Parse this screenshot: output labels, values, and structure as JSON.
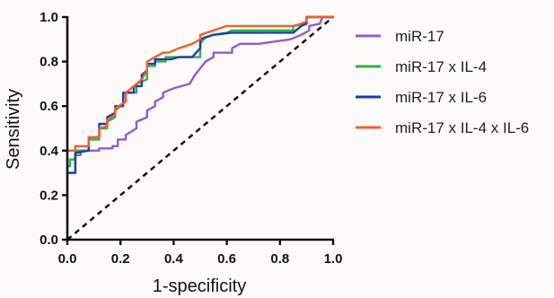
{
  "chart_data": {
    "type": "line",
    "title": "",
    "xlabel": "1-specificity",
    "ylabel": "Sensitivity",
    "xlim": [
      0,
      1
    ],
    "ylim": [
      0,
      1
    ],
    "x_ticks": [
      "0.0",
      "0.2",
      "0.4",
      "0.6",
      "0.8",
      "1.0"
    ],
    "y_ticks": [
      "0.0",
      "0.2",
      "0.4",
      "0.6",
      "0.8",
      "1.0"
    ],
    "grid": false,
    "legend_position": "right",
    "reference_line": {
      "style": "dashed",
      "color": "#111111",
      "from": [
        0,
        0
      ],
      "to": [
        1,
        1
      ]
    },
    "series": [
      {
        "name": "miR-17",
        "color": "#9b59c8",
        "points": [
          [
            0,
            0.29
          ],
          [
            0,
            0.3
          ],
          [
            0.03,
            0.3
          ],
          [
            0.03,
            0.38
          ],
          [
            0.05,
            0.38
          ],
          [
            0.05,
            0.4
          ],
          [
            0.12,
            0.4
          ],
          [
            0.12,
            0.41
          ],
          [
            0.17,
            0.41
          ],
          [
            0.17,
            0.42
          ],
          [
            0.19,
            0.42
          ],
          [
            0.19,
            0.45
          ],
          [
            0.22,
            0.45
          ],
          [
            0.22,
            0.47
          ],
          [
            0.26,
            0.5
          ],
          [
            0.26,
            0.53
          ],
          [
            0.3,
            0.55
          ],
          [
            0.3,
            0.58
          ],
          [
            0.33,
            0.6
          ],
          [
            0.33,
            0.62
          ],
          [
            0.36,
            0.64
          ],
          [
            0.36,
            0.66
          ],
          [
            0.4,
            0.68
          ],
          [
            0.46,
            0.7
          ],
          [
            0.48,
            0.74
          ],
          [
            0.52,
            0.8
          ],
          [
            0.55,
            0.82
          ],
          [
            0.55,
            0.84
          ],
          [
            0.62,
            0.84
          ],
          [
            0.62,
            0.86
          ],
          [
            0.65,
            0.88
          ],
          [
            0.72,
            0.88
          ],
          [
            0.78,
            0.89
          ],
          [
            0.84,
            0.9
          ],
          [
            0.88,
            0.92
          ],
          [
            0.91,
            0.94
          ],
          [
            0.91,
            0.96
          ],
          [
            0.95,
            0.97
          ],
          [
            0.96,
            1.0
          ],
          [
            1.0,
            1.0
          ]
        ]
      },
      {
        "name": "miR-17 x IL-4",
        "color": "#2fb24a",
        "points": [
          [
            0,
            0.33
          ],
          [
            0.01,
            0.33
          ],
          [
            0.01,
            0.36
          ],
          [
            0.03,
            0.36
          ],
          [
            0.03,
            0.4
          ],
          [
            0.08,
            0.4
          ],
          [
            0.08,
            0.45
          ],
          [
            0.12,
            0.45
          ],
          [
            0.12,
            0.5
          ],
          [
            0.15,
            0.5
          ],
          [
            0.15,
            0.53
          ],
          [
            0.18,
            0.55
          ],
          [
            0.18,
            0.58
          ],
          [
            0.22,
            0.62
          ],
          [
            0.22,
            0.66
          ],
          [
            0.26,
            0.66
          ],
          [
            0.26,
            0.7
          ],
          [
            0.3,
            0.72
          ],
          [
            0.3,
            0.78
          ],
          [
            0.33,
            0.78
          ],
          [
            0.33,
            0.8
          ],
          [
            0.37,
            0.8
          ],
          [
            0.37,
            0.82
          ],
          [
            0.5,
            0.82
          ],
          [
            0.5,
            0.88
          ],
          [
            0.52,
            0.91
          ],
          [
            0.55,
            0.92
          ],
          [
            0.6,
            0.93
          ],
          [
            0.62,
            0.94
          ],
          [
            0.85,
            0.94
          ],
          [
            0.85,
            0.96
          ],
          [
            0.9,
            0.97
          ],
          [
            0.9,
            1.0
          ],
          [
            1.0,
            1.0
          ]
        ]
      },
      {
        "name": "miR-17 x IL-6",
        "color": "#1b3faa",
        "points": [
          [
            0,
            0.3
          ],
          [
            0.03,
            0.3
          ],
          [
            0.03,
            0.39
          ],
          [
            0.08,
            0.4
          ],
          [
            0.08,
            0.46
          ],
          [
            0.12,
            0.46
          ],
          [
            0.12,
            0.52
          ],
          [
            0.15,
            0.52
          ],
          [
            0.15,
            0.55
          ],
          [
            0.18,
            0.57
          ],
          [
            0.18,
            0.6
          ],
          [
            0.21,
            0.6
          ],
          [
            0.21,
            0.66
          ],
          [
            0.25,
            0.66
          ],
          [
            0.25,
            0.69
          ],
          [
            0.28,
            0.69
          ],
          [
            0.28,
            0.74
          ],
          [
            0.3,
            0.76
          ],
          [
            0.3,
            0.79
          ],
          [
            0.33,
            0.79
          ],
          [
            0.33,
            0.81
          ],
          [
            0.36,
            0.81
          ],
          [
            0.39,
            0.81
          ],
          [
            0.42,
            0.82
          ],
          [
            0.47,
            0.82
          ],
          [
            0.5,
            0.86
          ],
          [
            0.5,
            0.9
          ],
          [
            0.55,
            0.92
          ],
          [
            0.62,
            0.93
          ],
          [
            0.85,
            0.93
          ],
          [
            0.88,
            0.96
          ],
          [
            0.9,
            0.97
          ],
          [
            0.9,
            1.0
          ],
          [
            1.0,
            1.0
          ]
        ]
      },
      {
        "name": "miR-17 x IL-4 x IL-6",
        "color": "#f0602e",
        "points": [
          [
            0,
            0.4
          ],
          [
            0.03,
            0.4
          ],
          [
            0.03,
            0.42
          ],
          [
            0.08,
            0.42
          ],
          [
            0.08,
            0.46
          ],
          [
            0.12,
            0.46
          ],
          [
            0.12,
            0.5
          ],
          [
            0.15,
            0.51
          ],
          [
            0.15,
            0.54
          ],
          [
            0.18,
            0.56
          ],
          [
            0.18,
            0.59
          ],
          [
            0.22,
            0.62
          ],
          [
            0.22,
            0.66
          ],
          [
            0.25,
            0.69
          ],
          [
            0.28,
            0.72
          ],
          [
            0.3,
            0.76
          ],
          [
            0.3,
            0.8
          ],
          [
            0.33,
            0.82
          ],
          [
            0.36,
            0.84
          ],
          [
            0.38,
            0.84
          ],
          [
            0.42,
            0.86
          ],
          [
            0.47,
            0.88
          ],
          [
            0.5,
            0.9
          ],
          [
            0.5,
            0.92
          ],
          [
            0.55,
            0.94
          ],
          [
            0.6,
            0.96
          ],
          [
            0.85,
            0.96
          ],
          [
            0.88,
            0.97
          ],
          [
            0.9,
            0.98
          ],
          [
            0.9,
            1.0
          ],
          [
            1.0,
            1.0
          ]
        ]
      }
    ]
  }
}
